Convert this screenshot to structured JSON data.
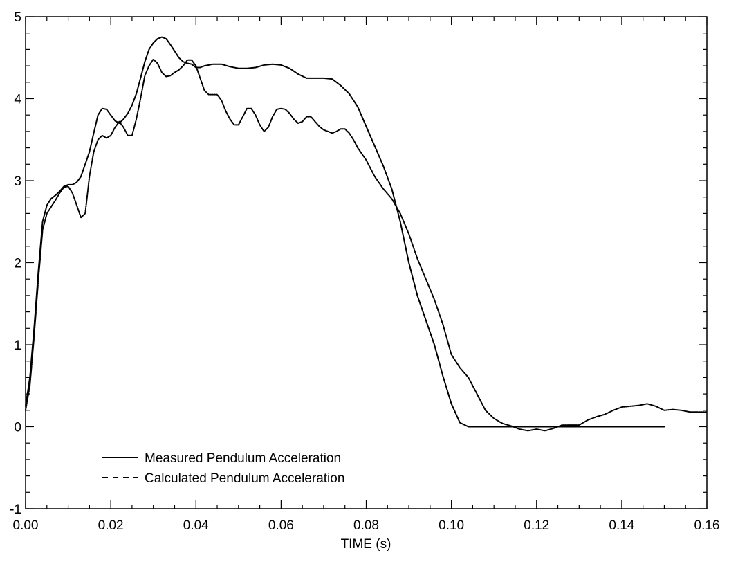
{
  "chart_data": {
    "type": "line",
    "title": "",
    "xlabel": "TIME  (s)",
    "ylabel": "",
    "xlim": [
      0,
      0.16
    ],
    "ylim": [
      -1,
      5
    ],
    "x_ticks": [
      "0.00",
      "0.02",
      "0.04",
      "0.06",
      "0.08",
      "0.10",
      "0.12",
      "0.14",
      "0.16"
    ],
    "y_ticks": [
      "-1",
      "0",
      "1",
      "2",
      "3",
      "4",
      "5"
    ],
    "grid": false,
    "legend_position": "bottom-left",
    "series": [
      {
        "name": "Measured Pendulum Acceleration",
        "style": "solid",
        "color": "#000000",
        "points": [
          [
            0.0,
            0.25
          ],
          [
            0.001,
            0.6
          ],
          [
            0.002,
            1.2
          ],
          [
            0.003,
            1.9
          ],
          [
            0.004,
            2.5
          ],
          [
            0.005,
            2.7
          ],
          [
            0.006,
            2.78
          ],
          [
            0.007,
            2.82
          ],
          [
            0.008,
            2.87
          ],
          [
            0.009,
            2.93
          ],
          [
            0.01,
            2.95
          ],
          [
            0.011,
            2.95
          ],
          [
            0.012,
            2.98
          ],
          [
            0.013,
            3.05
          ],
          [
            0.014,
            3.2
          ],
          [
            0.015,
            3.35
          ],
          [
            0.016,
            3.58
          ],
          [
            0.017,
            3.8
          ],
          [
            0.018,
            3.88
          ],
          [
            0.019,
            3.87
          ],
          [
            0.02,
            3.8
          ],
          [
            0.021,
            3.73
          ],
          [
            0.022,
            3.7
          ],
          [
            0.023,
            3.75
          ],
          [
            0.024,
            3.82
          ],
          [
            0.025,
            3.92
          ],
          [
            0.026,
            4.06
          ],
          [
            0.027,
            4.25
          ],
          [
            0.028,
            4.45
          ],
          [
            0.029,
            4.6
          ],
          [
            0.03,
            4.68
          ],
          [
            0.031,
            4.73
          ],
          [
            0.032,
            4.75
          ],
          [
            0.033,
            4.73
          ],
          [
            0.034,
            4.66
          ],
          [
            0.035,
            4.58
          ],
          [
            0.036,
            4.5
          ],
          [
            0.037,
            4.45
          ],
          [
            0.038,
            4.43
          ],
          [
            0.039,
            4.42
          ],
          [
            0.04,
            4.38
          ],
          [
            0.041,
            4.38
          ],
          [
            0.042,
            4.4
          ],
          [
            0.044,
            4.42
          ],
          [
            0.046,
            4.42
          ],
          [
            0.048,
            4.39
          ],
          [
            0.05,
            4.37
          ],
          [
            0.052,
            4.37
          ],
          [
            0.054,
            4.38
          ],
          [
            0.056,
            4.41
          ],
          [
            0.058,
            4.42
          ],
          [
            0.06,
            4.41
          ],
          [
            0.062,
            4.37
          ],
          [
            0.064,
            4.3
          ],
          [
            0.066,
            4.25
          ],
          [
            0.068,
            4.25
          ],
          [
            0.07,
            4.25
          ],
          [
            0.072,
            4.24
          ],
          [
            0.074,
            4.16
          ],
          [
            0.076,
            4.06
          ],
          [
            0.078,
            3.9
          ],
          [
            0.08,
            3.66
          ],
          [
            0.082,
            3.42
          ],
          [
            0.084,
            3.18
          ],
          [
            0.086,
            2.9
          ],
          [
            0.088,
            2.5
          ],
          [
            0.09,
            2.0
          ],
          [
            0.092,
            1.6
          ],
          [
            0.094,
            1.3
          ],
          [
            0.096,
            1.0
          ],
          [
            0.098,
            0.62
          ],
          [
            0.1,
            0.28
          ],
          [
            0.102,
            0.05
          ],
          [
            0.104,
            0.0
          ],
          [
            0.11,
            0.0
          ],
          [
            0.12,
            0.0
          ],
          [
            0.13,
            0.0
          ],
          [
            0.14,
            0.0
          ],
          [
            0.15,
            0.0
          ]
        ]
      },
      {
        "name": "Calculated Pendulum Acceleration",
        "style": "dashed",
        "color": "#000000",
        "points": [
          [
            0.0,
            0.2
          ],
          [
            0.001,
            0.5
          ],
          [
            0.002,
            1.1
          ],
          [
            0.003,
            1.8
          ],
          [
            0.004,
            2.4
          ],
          [
            0.005,
            2.6
          ],
          [
            0.006,
            2.68
          ],
          [
            0.007,
            2.76
          ],
          [
            0.008,
            2.85
          ],
          [
            0.009,
            2.92
          ],
          [
            0.01,
            2.93
          ],
          [
            0.011,
            2.85
          ],
          [
            0.012,
            2.7
          ],
          [
            0.013,
            2.55
          ],
          [
            0.014,
            2.6
          ],
          [
            0.015,
            3.05
          ],
          [
            0.016,
            3.35
          ],
          [
            0.017,
            3.5
          ],
          [
            0.018,
            3.55
          ],
          [
            0.019,
            3.52
          ],
          [
            0.02,
            3.55
          ],
          [
            0.021,
            3.65
          ],
          [
            0.022,
            3.72
          ],
          [
            0.023,
            3.65
          ],
          [
            0.024,
            3.55
          ],
          [
            0.025,
            3.55
          ],
          [
            0.026,
            3.75
          ],
          [
            0.027,
            4.0
          ],
          [
            0.028,
            4.28
          ],
          [
            0.029,
            4.4
          ],
          [
            0.03,
            4.48
          ],
          [
            0.031,
            4.43
          ],
          [
            0.032,
            4.32
          ],
          [
            0.033,
            4.27
          ],
          [
            0.034,
            4.28
          ],
          [
            0.035,
            4.32
          ],
          [
            0.036,
            4.35
          ],
          [
            0.037,
            4.4
          ],
          [
            0.038,
            4.47
          ],
          [
            0.039,
            4.47
          ],
          [
            0.04,
            4.4
          ],
          [
            0.041,
            4.25
          ],
          [
            0.042,
            4.1
          ],
          [
            0.043,
            4.05
          ],
          [
            0.044,
            4.05
          ],
          [
            0.045,
            4.05
          ],
          [
            0.046,
            3.98
          ],
          [
            0.047,
            3.85
          ],
          [
            0.048,
            3.75
          ],
          [
            0.049,
            3.68
          ],
          [
            0.05,
            3.68
          ],
          [
            0.051,
            3.78
          ],
          [
            0.052,
            3.88
          ],
          [
            0.053,
            3.88
          ],
          [
            0.054,
            3.8
          ],
          [
            0.055,
            3.68
          ],
          [
            0.056,
            3.6
          ],
          [
            0.057,
            3.65
          ],
          [
            0.058,
            3.78
          ],
          [
            0.059,
            3.87
          ],
          [
            0.06,
            3.88
          ],
          [
            0.061,
            3.87
          ],
          [
            0.062,
            3.82
          ],
          [
            0.063,
            3.75
          ],
          [
            0.064,
            3.7
          ],
          [
            0.065,
            3.72
          ],
          [
            0.066,
            3.78
          ],
          [
            0.067,
            3.78
          ],
          [
            0.068,
            3.72
          ],
          [
            0.069,
            3.66
          ],
          [
            0.07,
            3.62
          ],
          [
            0.071,
            3.6
          ],
          [
            0.072,
            3.58
          ],
          [
            0.073,
            3.6
          ],
          [
            0.074,
            3.63
          ],
          [
            0.075,
            3.63
          ],
          [
            0.076,
            3.58
          ],
          [
            0.077,
            3.5
          ],
          [
            0.078,
            3.4
          ],
          [
            0.08,
            3.25
          ],
          [
            0.082,
            3.05
          ],
          [
            0.084,
            2.9
          ],
          [
            0.086,
            2.78
          ],
          [
            0.088,
            2.6
          ],
          [
            0.09,
            2.35
          ],
          [
            0.092,
            2.05
          ],
          [
            0.094,
            1.8
          ],
          [
            0.096,
            1.55
          ],
          [
            0.098,
            1.25
          ],
          [
            0.1,
            0.88
          ],
          [
            0.102,
            0.72
          ],
          [
            0.104,
            0.6
          ],
          [
            0.106,
            0.4
          ],
          [
            0.108,
            0.2
          ],
          [
            0.11,
            0.1
          ],
          [
            0.112,
            0.04
          ],
          [
            0.114,
            0.01
          ],
          [
            0.116,
            -0.03
          ],
          [
            0.118,
            -0.05
          ],
          [
            0.12,
            -0.03
          ],
          [
            0.122,
            -0.05
          ],
          [
            0.124,
            -0.02
          ],
          [
            0.126,
            0.02
          ],
          [
            0.128,
            0.02
          ],
          [
            0.13,
            0.02
          ],
          [
            0.132,
            0.08
          ],
          [
            0.134,
            0.12
          ],
          [
            0.136,
            0.15
          ],
          [
            0.138,
            0.2
          ],
          [
            0.14,
            0.24
          ],
          [
            0.142,
            0.25
          ],
          [
            0.144,
            0.26
          ],
          [
            0.146,
            0.28
          ],
          [
            0.148,
            0.25
          ],
          [
            0.15,
            0.2
          ],
          [
            0.152,
            0.21
          ],
          [
            0.154,
            0.2
          ],
          [
            0.156,
            0.18
          ],
          [
            0.158,
            0.18
          ],
          [
            0.16,
            0.18
          ]
        ]
      }
    ]
  }
}
